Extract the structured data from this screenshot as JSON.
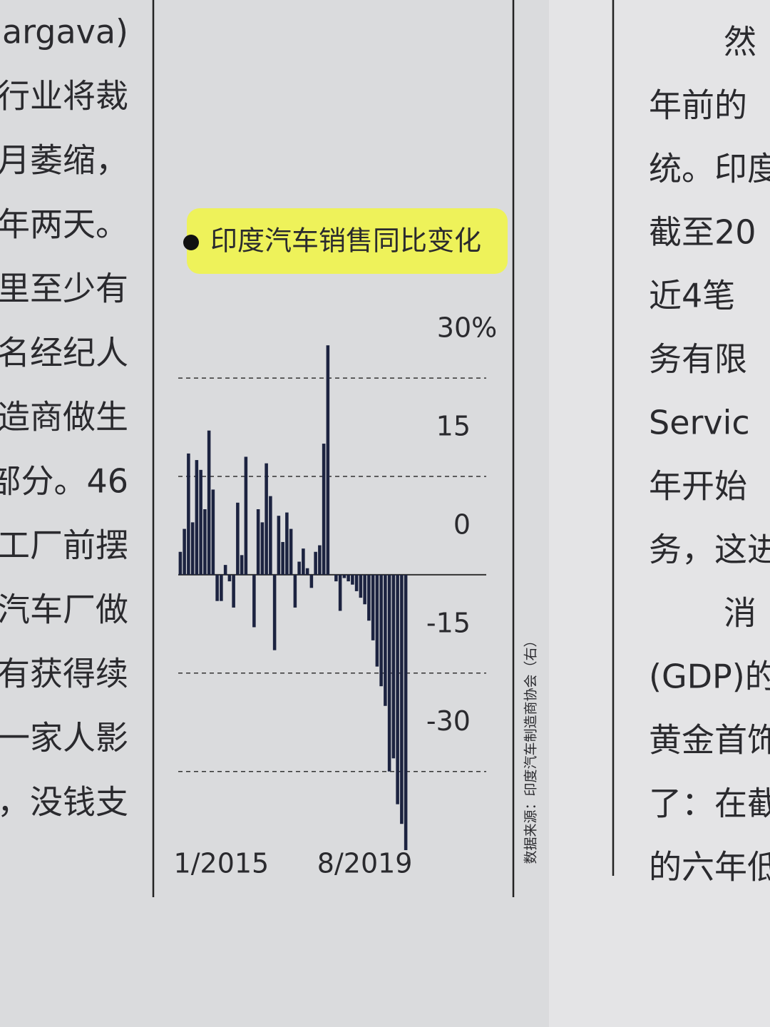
{
  "chart_data": {
    "type": "bar",
    "title": "印度汽车销售同比变化",
    "categories": [
      null,
      null,
      null,
      null,
      null,
      null,
      null,
      null,
      null,
      null,
      "1/2015",
      null,
      null,
      null,
      null,
      null,
      null,
      null,
      null,
      null,
      null,
      null,
      null,
      null,
      null,
      null,
      null,
      null,
      null,
      null,
      null,
      null,
      null,
      null,
      null,
      null,
      null,
      null,
      null,
      null,
      null,
      null,
      null,
      null,
      null,
      "8/2019",
      null,
      null,
      null,
      null,
      null,
      null,
      null,
      null,
      null,
      null
    ],
    "values": [
      3.5,
      7,
      18.5,
      8,
      17.5,
      16,
      10,
      22,
      13,
      -4,
      -4,
      1.5,
      -1,
      -5,
      11,
      3,
      18,
      0,
      -8,
      10,
      8,
      17,
      12,
      -11.5,
      9,
      5,
      9.5,
      7,
      -5,
      2,
      4,
      1,
      -2,
      3.5,
      4.5,
      20,
      35,
      0,
      -1,
      -5.5,
      -0.5,
      -1,
      -1.5,
      -2.5,
      -3.5,
      -4.5,
      -7,
      -10,
      -14,
      -17,
      -20,
      -30,
      -28,
      -35,
      -38,
      -42
    ],
    "color": "#1c2340",
    "ylim": [
      -42,
      36
    ],
    "yticks": [
      {
        "value": 30,
        "label": "30%"
      },
      15,
      0,
      -15,
      -30
    ],
    "grid": true,
    "source": "数据来源：印度汽车制造商协会（右）"
  },
  "page": {
    "left_column": [
      "argava)",
      "行业将裁",
      "月萎缩，",
      "年两天。",
      "里至少有",
      "名经纪人",
      "造商做生",
      "部分。46",
      "工厂前摆",
      "汽车厂做",
      "有获得续",
      "一家人影",
      "，没钱支"
    ],
    "right_column": [
      "然",
      "年前的",
      "统。印度",
      "截至20",
      "近4笔",
      "务有限",
      "Servic",
      "年开始",
      "务，这进",
      "消",
      "(GDP)的",
      "黄金首饰",
      "了：在截",
      "的六年低"
    ]
  }
}
